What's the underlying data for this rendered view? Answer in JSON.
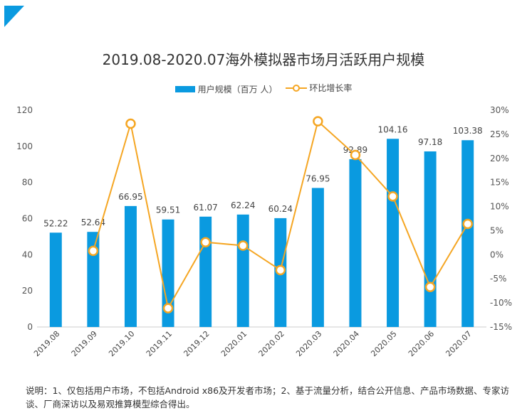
{
  "chart_data": {
    "type": "bar",
    "title": "2019.08-2020.07海外模拟器市场月活跃用户规模",
    "categories": [
      "2019.08",
      "2019.09",
      "2019.10",
      "2019.11",
      "2019.12",
      "2020.01",
      "2020.02",
      "2020.03",
      "2020.04",
      "2020.05",
      "2020.06",
      "2020.07"
    ],
    "series": [
      {
        "name": "用户规模（百万 人）",
        "type": "bar",
        "axis": "left",
        "color": "#0a9ae0",
        "values": [
          52.22,
          52.64,
          66.95,
          59.51,
          61.07,
          62.24,
          60.24,
          76.95,
          92.89,
          104.16,
          97.18,
          103.38
        ]
      },
      {
        "name": "环比增长率",
        "type": "line",
        "axis": "right",
        "color": "#f5a623",
        "values": [
          null,
          0.8,
          27.2,
          -11.1,
          2.6,
          1.9,
          -3.2,
          27.7,
          20.7,
          12.1,
          -6.7,
          6.4
        ]
      }
    ],
    "left_axis": {
      "range": [
        0,
        120
      ],
      "ticks": [
        "0",
        "20",
        "40",
        "60",
        "80",
        "100",
        "120"
      ]
    },
    "right_axis": {
      "range": [
        -15,
        30
      ],
      "ticks": [
        "-15%",
        "-10%",
        "-5%",
        "0%",
        "5%",
        "10%",
        "15%",
        "20%",
        "25%",
        "30%"
      ]
    },
    "data_labels": [
      "52.22",
      "52.64",
      "66.95",
      "59.51",
      "61.07",
      "62.24",
      "60.24",
      "76.95",
      "92.89",
      "104.16",
      "97.18",
      "103.38"
    ],
    "legend_placement": "top",
    "grid": false
  },
  "note": "说明：1、仅包括用户市场，不包括Android x86及开发者市场；2、基于流量分析，结合公开信息、产品市场数据、专家访谈、厂商深访以及易观推算模型综合得出。",
  "colors": {
    "accent": "#0a9ae0",
    "line": "#f5a623"
  }
}
